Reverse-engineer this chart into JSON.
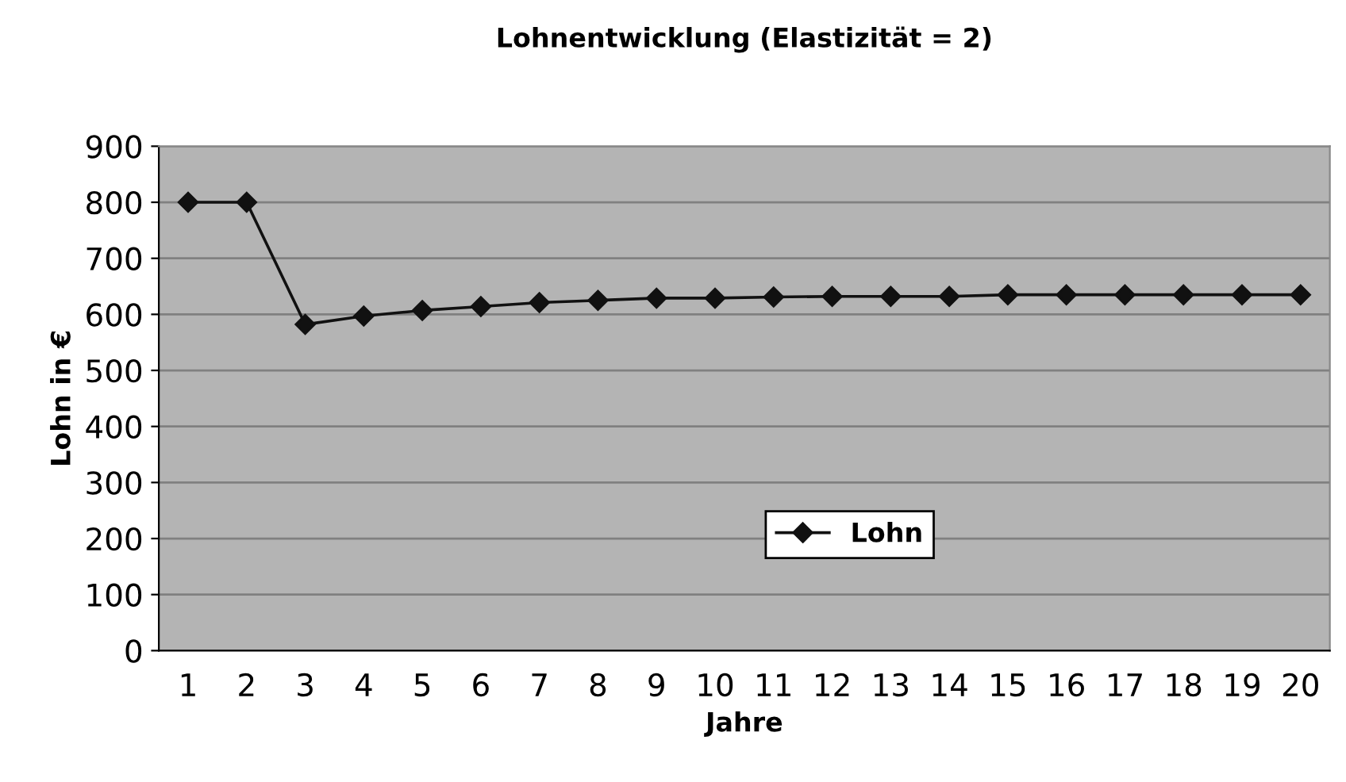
{
  "chart_data": {
    "type": "line",
    "title": "Lohnentwicklung (Elastizität = 2)",
    "xlabel": "Jahre",
    "ylabel": "Lohn in €",
    "categories": [
      "1",
      "2",
      "3",
      "4",
      "5",
      "6",
      "7",
      "8",
      "9",
      "10",
      "11",
      "12",
      "13",
      "14",
      "15",
      "16",
      "17",
      "18",
      "19",
      "20"
    ],
    "series": [
      {
        "name": "Lohn",
        "color": "#111111",
        "values": [
          800,
          800,
          582,
          597,
          607,
          614,
          621,
          625,
          629,
          629,
          631,
          632,
          632,
          632,
          635,
          635,
          635,
          635,
          635,
          635
        ]
      }
    ],
    "ylim": [
      0,
      900
    ],
    "yticks": [
      0,
      100,
      200,
      300,
      400,
      500,
      600,
      700,
      800,
      900
    ],
    "grid": "y",
    "legend": "bottom",
    "marker": "diamond",
    "line_style": "solid"
  }
}
